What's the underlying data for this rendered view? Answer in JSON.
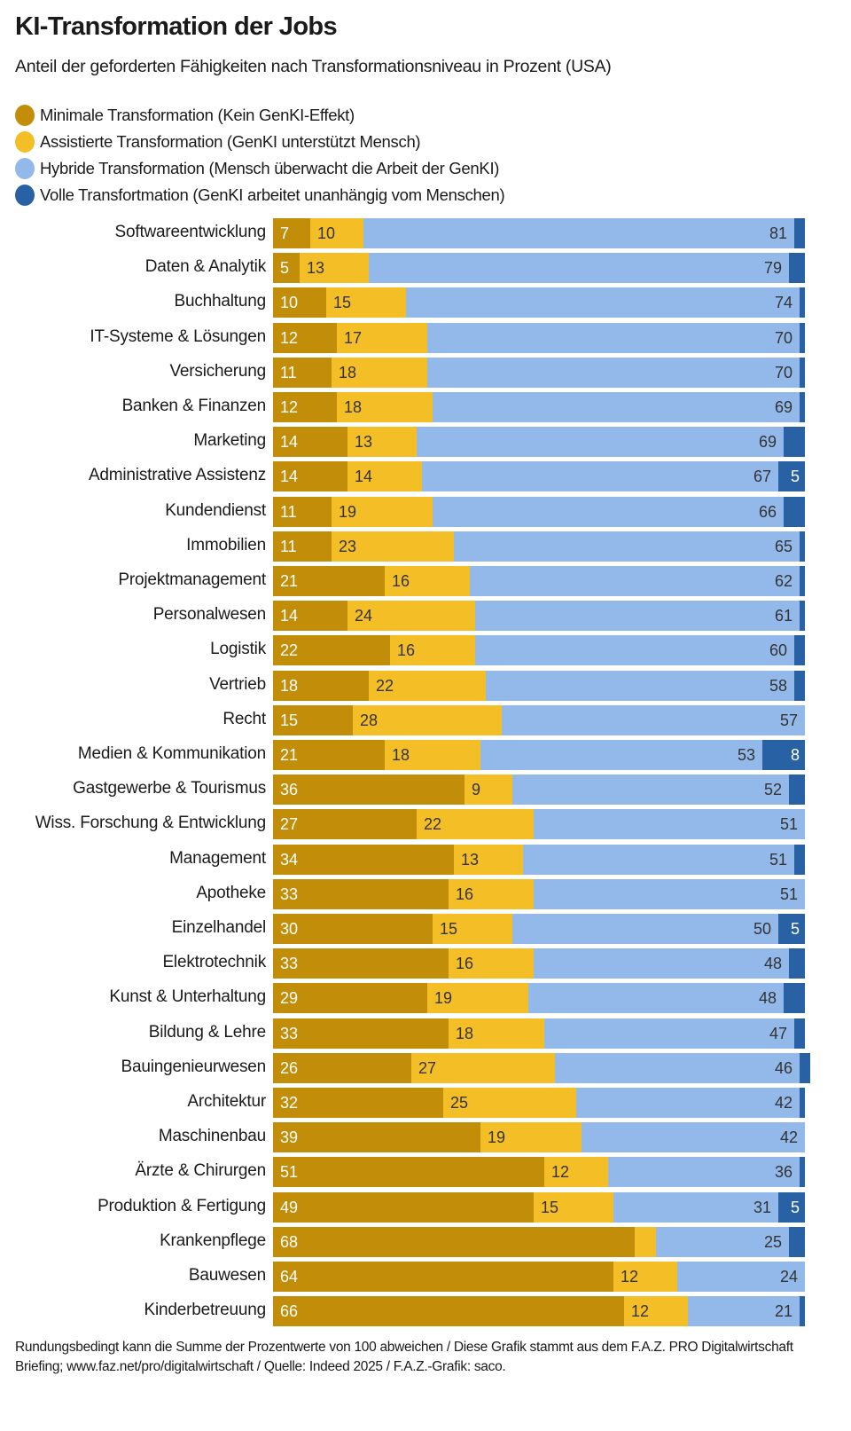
{
  "colors": {
    "minimal": "#c28e0a",
    "assisted": "#f4be27",
    "hybrid": "#92b9ea",
    "full": "#2962a4",
    "label_light": "#ffffff",
    "label_dark": "#333333"
  },
  "chart_data": {
    "type": "bar",
    "orientation": "horizontal",
    "stacked": true,
    "title": "KI-Transformation der Jobs",
    "subtitle": "Anteil der geforderten Fähigkeiten nach Transformationsniveau in Prozent (USA)",
    "xlabel": "",
    "ylabel": "",
    "xlim": [
      0,
      100
    ],
    "grid": false,
    "legend_position": "top-left",
    "legend": [
      {
        "key": "minimal",
        "label": "Minimale Transformation (Kein GenKI-Effekt)"
      },
      {
        "key": "assisted",
        "label": "Assistierte Transformation (GenKI unterstützt Mensch)"
      },
      {
        "key": "hybrid",
        "label": "Hybride Transformation (Mensch überwacht die Arbeit der GenKI)"
      },
      {
        "key": "full",
        "label": "Volle Transfortmation (GenKI arbeitet unanhängig vom Menschen)"
      }
    ],
    "categories": [
      "Softwareentwicklung",
      "Daten & Analytik",
      "Buchhaltung",
      "IT-Systeme & Lösungen",
      "Versicherung",
      "Banken & Finanzen",
      "Marketing",
      "Administrative Assistenz",
      "Kundendienst",
      "Immobilien",
      "Projektmanagement",
      "Personalwesen",
      "Logistik",
      "Vertrieb",
      "Recht",
      "Medien & Kommunikation",
      "Gastgewerbe & Tourismus",
      "Wiss. Forschung & Entwicklung",
      "Management",
      "Apotheke",
      "Einzelhandel",
      "Elektrotechnik",
      "Kunst & Unterhaltung",
      "Bildung & Lehre",
      "Bauingenieurwesen",
      "Architektur",
      "Maschinenbau",
      "Ärzte & Chirurgen",
      "Produktion & Fertigung",
      "Krankenpflege",
      "Bauwesen",
      "Kinderbetreuung"
    ],
    "series": [
      {
        "name": "Minimale Transformation",
        "key": "minimal",
        "values": [
          7,
          5,
          10,
          12,
          11,
          12,
          14,
          14,
          11,
          11,
          21,
          14,
          22,
          18,
          15,
          21,
          36,
          27,
          34,
          33,
          30,
          33,
          29,
          33,
          26,
          32,
          39,
          51,
          49,
          68,
          64,
          66
        ]
      },
      {
        "name": "Assistierte Transformation",
        "key": "assisted",
        "values": [
          10,
          13,
          15,
          17,
          18,
          18,
          13,
          14,
          19,
          23,
          16,
          24,
          16,
          22,
          28,
          18,
          9,
          22,
          13,
          16,
          15,
          16,
          19,
          18,
          27,
          25,
          19,
          12,
          15,
          4,
          12,
          12
        ]
      },
      {
        "name": "Hybride Transformation",
        "key": "hybrid",
        "values": [
          81,
          79,
          74,
          70,
          70,
          69,
          69,
          67,
          66,
          65,
          62,
          61,
          60,
          58,
          57,
          53,
          52,
          51,
          51,
          51,
          50,
          48,
          48,
          47,
          46,
          42,
          42,
          36,
          31,
          25,
          24,
          21
        ]
      },
      {
        "name": "Volle Transformation",
        "key": "full",
        "values": [
          2,
          3,
          1,
          1,
          1,
          1,
          4,
          5,
          4,
          1,
          1,
          1,
          2,
          2,
          0,
          8,
          3,
          0,
          2,
          0,
          5,
          3,
          4,
          2,
          2,
          1,
          0,
          1,
          5,
          3,
          0,
          1
        ]
      }
    ],
    "labeled": [
      [
        true,
        true,
        true,
        false
      ],
      [
        true,
        true,
        true,
        false
      ],
      [
        true,
        true,
        true,
        false
      ],
      [
        true,
        true,
        true,
        false
      ],
      [
        true,
        true,
        true,
        false
      ],
      [
        true,
        true,
        true,
        false
      ],
      [
        true,
        true,
        true,
        false
      ],
      [
        true,
        true,
        true,
        true
      ],
      [
        true,
        true,
        true,
        false
      ],
      [
        true,
        true,
        true,
        false
      ],
      [
        true,
        true,
        true,
        false
      ],
      [
        true,
        true,
        true,
        false
      ],
      [
        true,
        true,
        true,
        false
      ],
      [
        true,
        true,
        true,
        false
      ],
      [
        true,
        true,
        true,
        false
      ],
      [
        true,
        true,
        true,
        true
      ],
      [
        true,
        true,
        true,
        false
      ],
      [
        true,
        true,
        true,
        false
      ],
      [
        true,
        true,
        true,
        false
      ],
      [
        true,
        true,
        true,
        false
      ],
      [
        true,
        true,
        true,
        true
      ],
      [
        true,
        true,
        true,
        false
      ],
      [
        true,
        true,
        true,
        false
      ],
      [
        true,
        true,
        true,
        false
      ],
      [
        true,
        true,
        true,
        false
      ],
      [
        true,
        true,
        true,
        false
      ],
      [
        true,
        true,
        true,
        false
      ],
      [
        true,
        true,
        true,
        false
      ],
      [
        true,
        true,
        true,
        true
      ],
      [
        true,
        false,
        true,
        false
      ],
      [
        true,
        true,
        true,
        false
      ],
      [
        true,
        true,
        true,
        false
      ]
    ]
  },
  "footer": {
    "note": "Rundungsbedingt kann die Summe der Prozentwerte von 100 abweichen / Diese Grafik stammt aus dem F.A.Z. PRO Digitalwirtschaft Briefing; www.faz.net/pro/digitalwirtschaft / Quelle: Indeed 2025 / F.A.Z.-Grafik: saco."
  }
}
